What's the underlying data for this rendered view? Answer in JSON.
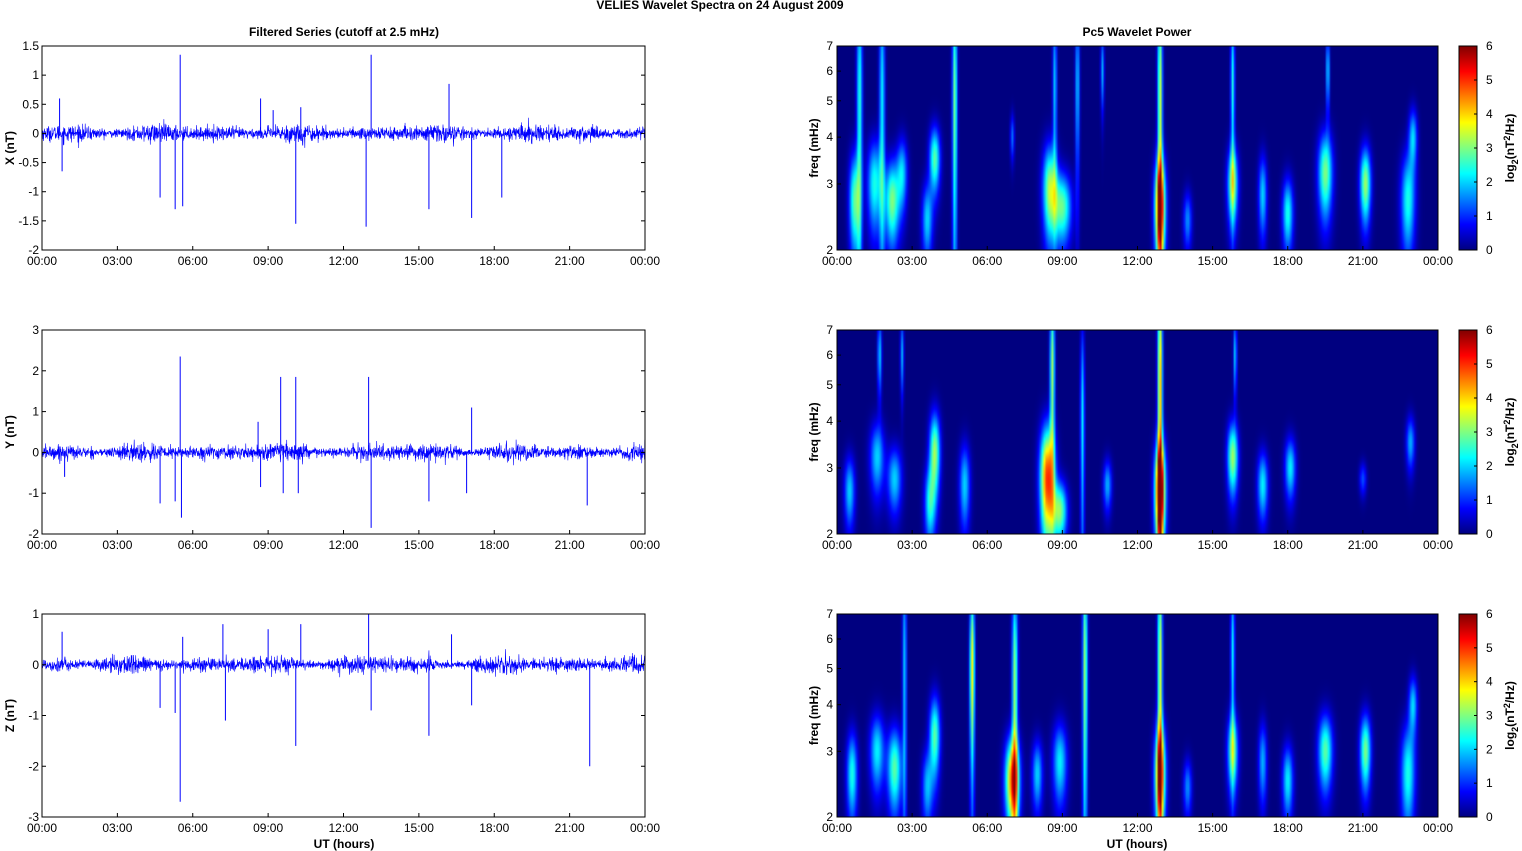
{
  "figure": {
    "suptitle": "VELIES Wavelet Spectra on 24 August    2009",
    "left_title": "Filtered Series (cutoff at 2.5 mHz)",
    "right_title": "Pc5 Wavelet Power",
    "xlabel": "UT (hours)",
    "colorbar_label": "log2(nT2/Hz)"
  },
  "chart_data": [
    {
      "type": "line",
      "ylabel": "X (nT)",
      "xlim": [
        0,
        24
      ],
      "ylim": [
        -2,
        1.5
      ],
      "yticks": [
        "-2",
        "-1.5",
        "-1",
        "-0.5",
        "0",
        "0.5",
        "1",
        "1.5"
      ],
      "xticks": [
        "00:00",
        "03:00",
        "06:00",
        "09:00",
        "12:00",
        "15:00",
        "18:00",
        "21:00",
        "00:00"
      ],
      "noise_amplitude": 0.18,
      "spikes": [
        [
          0.7,
          0.6
        ],
        [
          0.8,
          -0.65
        ],
        [
          4.7,
          -1.1
        ],
        [
          5.3,
          -1.3
        ],
        [
          5.5,
          1.35
        ],
        [
          5.6,
          -1.25
        ],
        [
          8.7,
          0.6
        ],
        [
          9.2,
          0.4
        ],
        [
          10.1,
          -1.55
        ],
        [
          10.3,
          0.45
        ],
        [
          12.9,
          -1.6
        ],
        [
          13.1,
          1.35
        ],
        [
          15.4,
          -1.3
        ],
        [
          16.2,
          0.85
        ],
        [
          17.1,
          -1.45
        ],
        [
          18.3,
          -1.1
        ]
      ],
      "color": "#0000ff"
    },
    {
      "type": "line",
      "ylabel": "Y (nT)",
      "xlim": [
        0,
        24
      ],
      "ylim": [
        -2,
        3
      ],
      "yticks": [
        "-2",
        "-1",
        "0",
        "1",
        "2",
        "3"
      ],
      "xticks": [
        "00:00",
        "03:00",
        "06:00",
        "09:00",
        "12:00",
        "15:00",
        "18:00",
        "21:00",
        "00:00"
      ],
      "noise_amplitude": 0.25,
      "spikes": [
        [
          0.9,
          -0.6
        ],
        [
          4.7,
          -1.25
        ],
        [
          5.3,
          -1.2
        ],
        [
          5.5,
          2.35
        ],
        [
          5.55,
          -1.6
        ],
        [
          8.6,
          0.75
        ],
        [
          8.7,
          -0.85
        ],
        [
          9.5,
          1.85
        ],
        [
          9.6,
          -1.0
        ],
        [
          10.1,
          1.85
        ],
        [
          10.2,
          -1.0
        ],
        [
          13.0,
          1.85
        ],
        [
          13.1,
          -1.85
        ],
        [
          15.4,
          -1.2
        ],
        [
          16.9,
          -1.0
        ],
        [
          17.1,
          1.1
        ],
        [
          21.7,
          -1.3
        ]
      ],
      "color": "#0000ff"
    },
    {
      "type": "line",
      "ylabel": "Z (nT)",
      "xlim": [
        0,
        24
      ],
      "ylim": [
        -3,
        1
      ],
      "yticks": [
        "-3",
        "-2",
        "-1",
        "0",
        "1"
      ],
      "xticks": [
        "00:00",
        "03:00",
        "06:00",
        "09:00",
        "12:00",
        "15:00",
        "18:00",
        "21:00",
        "00:00"
      ],
      "noise_amplitude": 0.2,
      "spikes": [
        [
          0.8,
          0.65
        ],
        [
          4.7,
          -0.85
        ],
        [
          5.3,
          -0.95
        ],
        [
          5.5,
          -2.7
        ],
        [
          5.6,
          0.55
        ],
        [
          7.2,
          0.8
        ],
        [
          7.3,
          -1.1
        ],
        [
          9.0,
          0.7
        ],
        [
          10.1,
          -1.6
        ],
        [
          10.3,
          0.8
        ],
        [
          13.0,
          1.0
        ],
        [
          13.1,
          -0.9
        ],
        [
          15.4,
          -1.4
        ],
        [
          16.3,
          0.6
        ],
        [
          17.1,
          -0.8
        ],
        [
          21.8,
          -2.0
        ]
      ],
      "color": "#0000ff"
    },
    {
      "type": "heatmap",
      "ylabel": "freq (mHz)",
      "xlim": [
        0,
        24
      ],
      "ylim": [
        2,
        7
      ],
      "yticks": [
        "2",
        "3",
        "4",
        "5",
        "6",
        "7"
      ],
      "xticks": [
        "00:00",
        "03:00",
        "06:00",
        "09:00",
        "12:00",
        "15:00",
        "18:00",
        "21:00",
        "00:00"
      ],
      "clim": [
        0,
        6
      ],
      "colorbar_ticks": [
        "0",
        "1",
        "2",
        "3",
        "4",
        "5",
        "6"
      ],
      "colormap": "jet",
      "features": [
        [
          0.7,
          2.7,
          0.15,
          0.6,
          2.8
        ],
        [
          0.9,
          5.0,
          0.08,
          3.0,
          2.5
        ],
        [
          1.5,
          3.0,
          0.2,
          0.6,
          2.4
        ],
        [
          1.8,
          5.0,
          0.08,
          3.0,
          2.2
        ],
        [
          2.2,
          2.7,
          0.2,
          0.5,
          3.0
        ],
        [
          2.6,
          3.2,
          0.15,
          0.5,
          2.0
        ],
        [
          3.9,
          3.5,
          0.15,
          0.5,
          2.8
        ],
        [
          3.6,
          2.4,
          0.15,
          0.4,
          2.0
        ],
        [
          4.7,
          5.0,
          0.07,
          3.0,
          3.0
        ],
        [
          7.0,
          4.0,
          0.06,
          0.4,
          1.4
        ],
        [
          8.5,
          2.9,
          0.2,
          0.6,
          3.2
        ],
        [
          8.7,
          5.5,
          0.06,
          2.0,
          2.0
        ],
        [
          9.0,
          2.6,
          0.25,
          0.4,
          2.8
        ],
        [
          9.6,
          5.5,
          0.06,
          2.0,
          2.0
        ],
        [
          10.6,
          6.0,
          0.05,
          1.0,
          1.8
        ],
        [
          12.9,
          2.6,
          0.15,
          0.6,
          5.2
        ],
        [
          12.9,
          5.0,
          0.07,
          3.0,
          3.5
        ],
        [
          14.0,
          2.4,
          0.12,
          0.3,
          1.6
        ],
        [
          15.8,
          3.0,
          0.15,
          0.5,
          3.0
        ],
        [
          15.8,
          5.5,
          0.06,
          2.0,
          2.4
        ],
        [
          17.0,
          2.8,
          0.12,
          0.5,
          2.0
        ],
        [
          18.0,
          2.5,
          0.15,
          0.4,
          2.4
        ],
        [
          19.5,
          3.2,
          0.2,
          0.6,
          3.0
        ],
        [
          19.6,
          6.0,
          0.05,
          1.0,
          2.2
        ],
        [
          21.1,
          3.0,
          0.15,
          0.5,
          3.2
        ],
        [
          22.8,
          2.7,
          0.2,
          0.6,
          2.4
        ],
        [
          23.0,
          4.0,
          0.12,
          0.5,
          2.0
        ]
      ]
    },
    {
      "type": "heatmap",
      "ylabel": "freq (mHz)",
      "xlim": [
        0,
        24
      ],
      "ylim": [
        2,
        7
      ],
      "yticks": [
        "2",
        "3",
        "4",
        "5",
        "6",
        "7"
      ],
      "xticks": [
        "00:00",
        "03:00",
        "06:00",
        "09:00",
        "12:00",
        "15:00",
        "18:00",
        "21:00",
        "00:00"
      ],
      "clim": [
        0,
        6
      ],
      "colorbar_ticks": [
        "0",
        "1",
        "2",
        "3",
        "4",
        "5",
        "6"
      ],
      "colormap": "jet",
      "features": [
        [
          0.5,
          2.6,
          0.15,
          0.4,
          2.0
        ],
        [
          1.6,
          3.2,
          0.2,
          0.5,
          2.0
        ],
        [
          1.7,
          6.0,
          0.06,
          1.0,
          2.0
        ],
        [
          2.3,
          2.8,
          0.2,
          0.4,
          2.0
        ],
        [
          2.6,
          6.0,
          0.05,
          1.0,
          1.8
        ],
        [
          3.9,
          3.3,
          0.15,
          0.6,
          3.2
        ],
        [
          3.7,
          2.4,
          0.15,
          0.4,
          2.2
        ],
        [
          5.1,
          2.7,
          0.15,
          0.5,
          2.0
        ],
        [
          8.4,
          2.8,
          0.2,
          0.7,
          5.0
        ],
        [
          8.6,
          5.5,
          0.07,
          2.0,
          3.2
        ],
        [
          8.9,
          2.3,
          0.2,
          0.3,
          3.0
        ],
        [
          9.8,
          4.0,
          0.06,
          2.0,
          2.2
        ],
        [
          10.8,
          2.7,
          0.12,
          0.3,
          1.8
        ],
        [
          12.9,
          2.6,
          0.15,
          0.6,
          5.8
        ],
        [
          12.9,
          5.0,
          0.07,
          3.0,
          4.2
        ],
        [
          15.8,
          3.2,
          0.15,
          0.5,
          3.2
        ],
        [
          15.9,
          6.0,
          0.05,
          1.0,
          2.0
        ],
        [
          17.0,
          2.7,
          0.15,
          0.4,
          2.2
        ],
        [
          18.1,
          3.0,
          0.15,
          0.4,
          2.2
        ],
        [
          21.0,
          2.8,
          0.1,
          0.2,
          1.2
        ],
        [
          22.9,
          3.5,
          0.12,
          0.4,
          1.8
        ]
      ]
    },
    {
      "type": "heatmap",
      "ylabel": "freq (mHz)",
      "xlim": [
        0,
        24
      ],
      "ylim": [
        2,
        7
      ],
      "yticks": [
        "2",
        "3",
        "4",
        "5",
        "6",
        "7"
      ],
      "xticks": [
        "00:00",
        "03:00",
        "06:00",
        "09:00",
        "12:00",
        "15:00",
        "18:00",
        "21:00",
        "00:00"
      ],
      "clim": [
        0,
        6
      ],
      "colorbar_ticks": [
        "0",
        "1",
        "2",
        "3",
        "4",
        "5",
        "6"
      ],
      "colormap": "jet",
      "features": [
        [
          0.6,
          2.6,
          0.15,
          0.5,
          2.4
        ],
        [
          1.6,
          3.0,
          0.2,
          0.5,
          2.2
        ],
        [
          2.3,
          2.7,
          0.2,
          0.5,
          2.8
        ],
        [
          2.7,
          5.0,
          0.06,
          3.0,
          2.0
        ],
        [
          3.9,
          3.3,
          0.15,
          0.6,
          2.8
        ],
        [
          3.6,
          2.4,
          0.15,
          0.4,
          1.8
        ],
        [
          5.4,
          5.0,
          0.07,
          2.0,
          3.8
        ],
        [
          7.0,
          2.5,
          0.2,
          0.5,
          4.5
        ],
        [
          7.1,
          4.5,
          0.08,
          2.5,
          3.2
        ],
        [
          8.0,
          2.6,
          0.15,
          0.4,
          2.0
        ],
        [
          8.9,
          2.8,
          0.2,
          0.5,
          2.2
        ],
        [
          9.9,
          5.0,
          0.07,
          3.0,
          3.2
        ],
        [
          12.9,
          2.6,
          0.15,
          0.6,
          4.8
        ],
        [
          12.9,
          5.0,
          0.07,
          3.0,
          3.6
        ],
        [
          14.0,
          2.4,
          0.12,
          0.3,
          1.6
        ],
        [
          15.8,
          3.0,
          0.15,
          0.5,
          2.8
        ],
        [
          15.8,
          5.5,
          0.06,
          2.0,
          2.2
        ],
        [
          17.0,
          2.8,
          0.12,
          0.5,
          1.8
        ],
        [
          18.0,
          2.5,
          0.15,
          0.4,
          2.2
        ],
        [
          19.5,
          3.0,
          0.2,
          0.5,
          2.8
        ],
        [
          21.1,
          3.0,
          0.15,
          0.5,
          3.0
        ],
        [
          22.8,
          2.6,
          0.2,
          0.6,
          2.4
        ],
        [
          23.0,
          4.0,
          0.12,
          0.5,
          2.0
        ]
      ]
    }
  ]
}
